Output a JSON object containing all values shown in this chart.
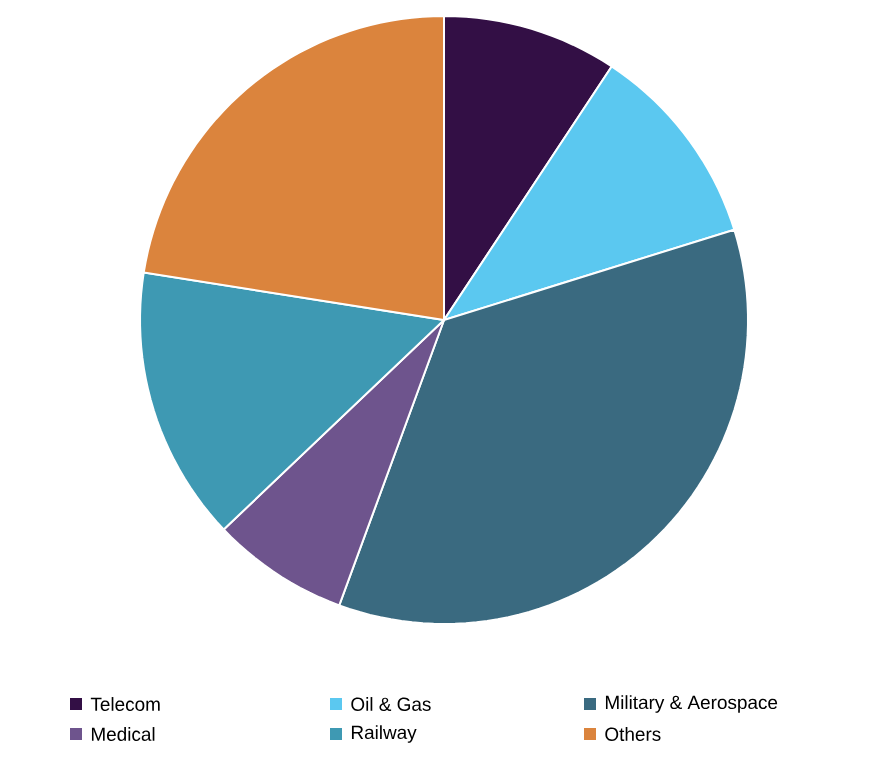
{
  "chart_data": {
    "type": "pie",
    "categories": [
      "Telecom",
      "Oil & Gas",
      "Military & Aerospace",
      "Medical",
      "Railway",
      "Others"
    ],
    "values": [
      9.3,
      10.9,
      35.4,
      7.3,
      14.6,
      22.5
    ],
    "colors": [
      "#330f45",
      "#5bc8f0",
      "#3a6a80",
      "#6e548d",
      "#3e99b3",
      "#db843d"
    ],
    "legend": "bottom"
  }
}
